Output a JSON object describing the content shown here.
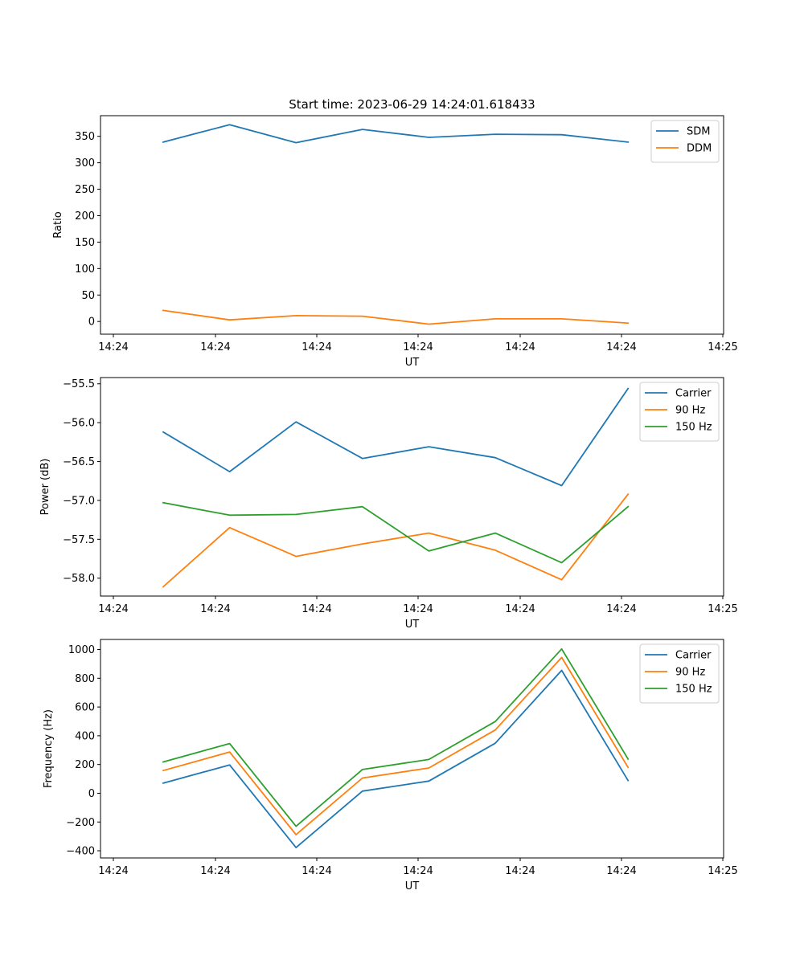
{
  "chart_data": [
    {
      "type": "line",
      "title": "Start time: 2023-06-29 14:24:01.618433",
      "xlabel": "UT",
      "ylabel": "Ratio",
      "x_tick_labels": [
        "14:24",
        "14:24",
        "14:24",
        "14:24",
        "14:24",
        "14:24",
        "14:25"
      ],
      "y_ticks": [
        0,
        50,
        100,
        150,
        200,
        250,
        300,
        350
      ],
      "ylim": [
        -24,
        389
      ],
      "grid": false,
      "legend": "top-right",
      "series": [
        {
          "name": "SDM",
          "color": "#1f77b4",
          "values": [
            339,
            372,
            338,
            363,
            348,
            354,
            353,
            339
          ]
        },
        {
          "name": "DDM",
          "color": "#ff7f0e",
          "values": [
            21,
            3,
            11,
            10,
            -5,
            5,
            5,
            -3
          ]
        }
      ]
    },
    {
      "type": "line",
      "title": "",
      "xlabel": "UT",
      "ylabel": "Power (dB)",
      "x_tick_labels": [
        "14:24",
        "14:24",
        "14:24",
        "14:24",
        "14:24",
        "14:24",
        "14:25"
      ],
      "y_ticks": [
        -58.0,
        -57.5,
        -57.0,
        -56.5,
        -56.0,
        -55.5
      ],
      "y_tick_labels": [
        "−58.0",
        "−57.5",
        "−57.0",
        "−56.5",
        "−56.0",
        "−55.5"
      ],
      "ylim": [
        -58.23,
        -55.42
      ],
      "grid": false,
      "legend": "top-right",
      "series": [
        {
          "name": "Carrier",
          "color": "#1f77b4",
          "values": [
            -56.12,
            -56.63,
            -55.99,
            -56.46,
            -56.31,
            -56.45,
            -56.81,
            -55.56
          ]
        },
        {
          "name": "90 Hz",
          "color": "#ff7f0e",
          "values": [
            -58.11,
            -57.35,
            -57.72,
            -57.56,
            -57.42,
            -57.64,
            -58.02,
            -56.92
          ]
        },
        {
          "name": "150 Hz",
          "color": "#2ca02c",
          "values": [
            -57.03,
            -57.19,
            -57.18,
            -57.08,
            -57.65,
            -57.42,
            -57.8,
            -57.08
          ]
        }
      ]
    },
    {
      "type": "line",
      "title": "",
      "xlabel": "UT",
      "ylabel": "Frequency (Hz)",
      "x_tick_labels": [
        "14:24",
        "14:24",
        "14:24",
        "14:24",
        "14:24",
        "14:24",
        "14:25"
      ],
      "y_ticks": [
        -400,
        -200,
        0,
        200,
        400,
        600,
        800,
        1000
      ],
      "y_tick_labels": [
        "−400",
        "−200",
        "0",
        "200",
        "400",
        "600",
        "800",
        "1000"
      ],
      "ylim": [
        -450,
        1070
      ],
      "grid": false,
      "legend": "top-right",
      "series": [
        {
          "name": "Carrier",
          "color": "#1f77b4",
          "values": [
            70,
            197,
            -378,
            15,
            85,
            348,
            855,
            88
          ]
        },
        {
          "name": "90 Hz",
          "color": "#ff7f0e",
          "values": [
            158,
            287,
            -288,
            106,
            176,
            440,
            945,
            180
          ]
        },
        {
          "name": "150 Hz",
          "color": "#2ca02c",
          "values": [
            218,
            346,
            -230,
            165,
            235,
            499,
            1004,
            238
          ]
        }
      ]
    }
  ]
}
